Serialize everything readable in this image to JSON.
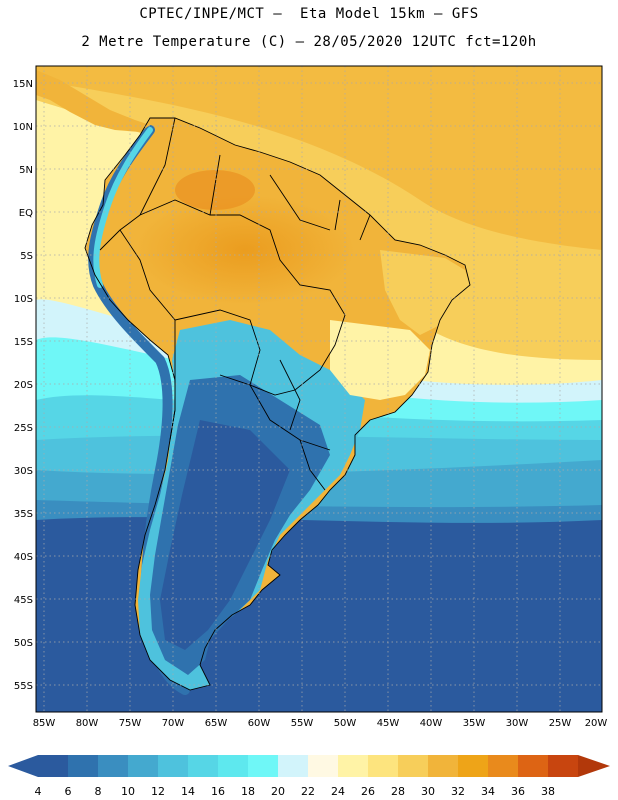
{
  "title": {
    "line1": "CPTEC/INPE/MCT –  Eta Model 15km – GFS",
    "line2": "2 Metre Temperature (C) – 28/05/2020 12UTC fct=120h"
  },
  "map": {
    "lat_labels": [
      "15N",
      "10N",
      "5N",
      "EQ",
      "5S",
      "10S",
      "15S",
      "20S",
      "25S",
      "30S",
      "35S",
      "40S",
      "45S",
      "50S",
      "55S"
    ],
    "lon_labels": [
      "85W",
      "80W",
      "75W",
      "70W",
      "65W",
      "60W",
      "55W",
      "50W",
      "45W",
      "40W",
      "35W",
      "30W",
      "25W",
      "20W"
    ],
    "lon_range": [
      -85,
      -20
    ],
    "lat_range": [
      -58,
      16
    ],
    "region": "South America"
  },
  "colorbar": {
    "labels": [
      "4",
      "6",
      "8",
      "10",
      "12",
      "14",
      "16",
      "18",
      "20",
      "22",
      "24",
      "26",
      "28",
      "30",
      "32",
      "34",
      "36",
      "38"
    ],
    "colors": [
      "#2b5a9e",
      "#2f72ae",
      "#3a8ec0",
      "#44a9cf",
      "#4ec2dd",
      "#56d6e6",
      "#5ee8ee",
      "#6ff7f7",
      "#d2f4fb",
      "#fff9e3",
      "#fff3a6",
      "#fde47e",
      "#f7ce5a",
      "#f1b43a",
      "#eea418",
      "#e98a1c",
      "#dd6414",
      "#c8450f",
      "#b2380a"
    ]
  }
}
